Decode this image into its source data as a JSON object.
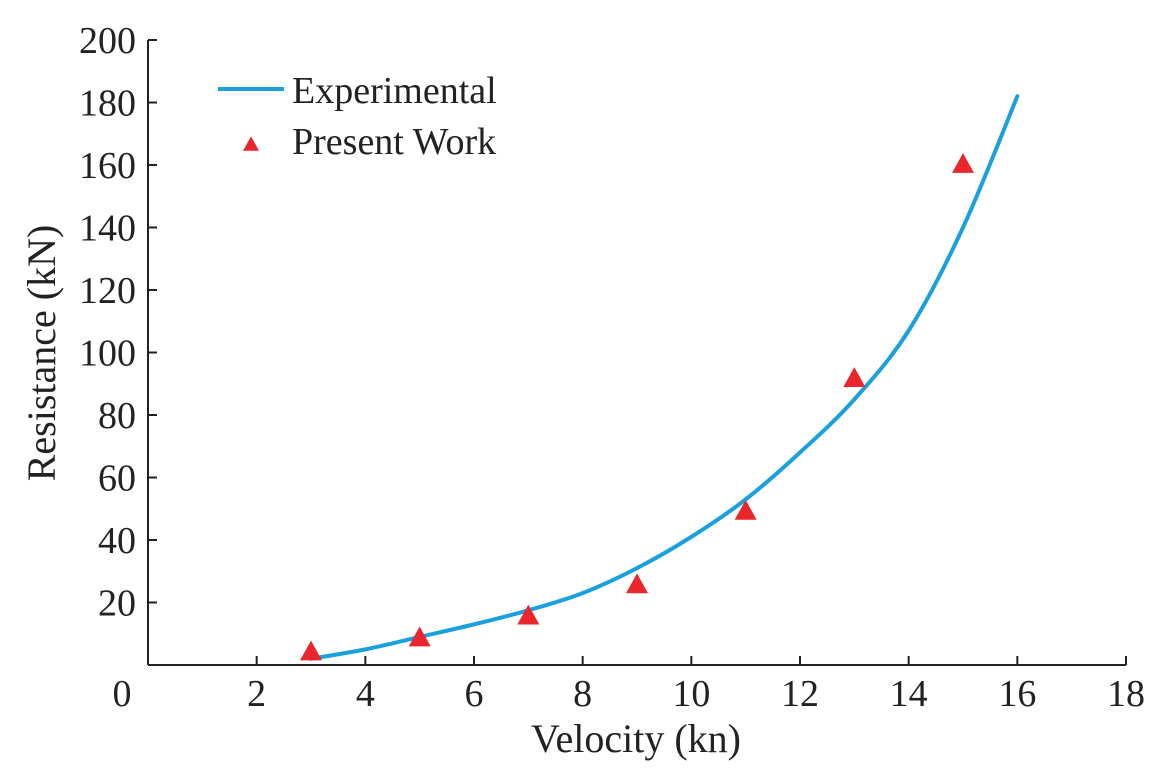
{
  "chart_data": {
    "type": "line",
    "title": "",
    "xlabel": "Velocity (kn)",
    "ylabel": "Resistance (kN)",
    "xlim": [
      0,
      18
    ],
    "ylim": [
      0,
      200
    ],
    "x_ticks": [
      0,
      2,
      4,
      6,
      8,
      10,
      12,
      14,
      16,
      18
    ],
    "y_ticks": [
      20,
      40,
      60,
      80,
      100,
      120,
      140,
      160,
      180,
      200
    ],
    "grid": false,
    "legend_position": "top-left",
    "series": [
      {
        "name": "Experimental",
        "kind": "line",
        "color": "#1aa0dc",
        "x": [
          3,
          4,
          5,
          6,
          7,
          8,
          9,
          10,
          11,
          12,
          13,
          14,
          15,
          16
        ],
        "y": [
          2,
          5,
          9,
          13,
          17.5,
          23,
          31,
          41,
          53,
          68,
          85,
          107,
          140,
          182
        ]
      },
      {
        "name": "Present Work",
        "kind": "scatter",
        "marker": "triangle",
        "color": "#e8262b",
        "x": [
          3,
          5,
          7,
          9,
          11,
          13,
          15
        ],
        "y": [
          4,
          8.5,
          15.5,
          25.5,
          49,
          91.5,
          160
        ]
      }
    ]
  }
}
